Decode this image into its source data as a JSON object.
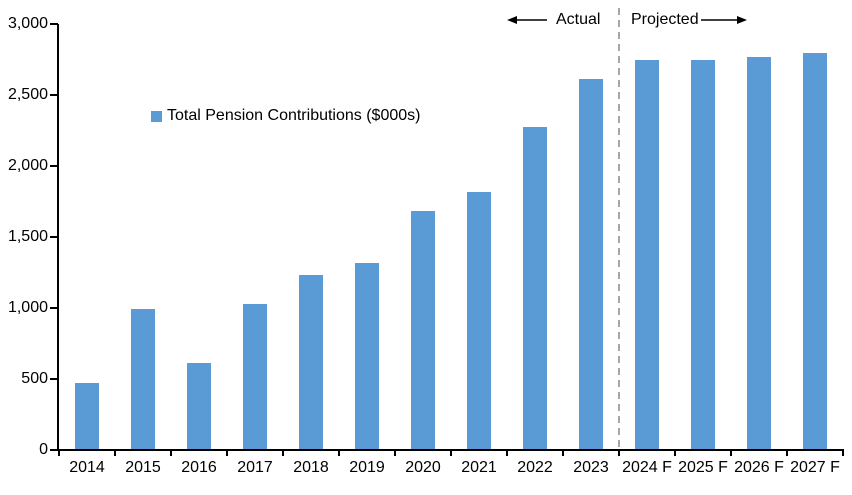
{
  "chart_data": {
    "type": "bar",
    "title": "",
    "legend_label": "Total Pension Contributions ($000s)",
    "categories": [
      "2014",
      "2015",
      "2016",
      "2017",
      "2018",
      "2019",
      "2020",
      "2021",
      "2022",
      "2023",
      "2024 F",
      "2025 F",
      "2026 F",
      "2027 F"
    ],
    "values": [
      470,
      990,
      610,
      1030,
      1230,
      1320,
      1685,
      1820,
      2275,
      2610,
      2750,
      2745,
      2770,
      2795
    ],
    "xlabel": "",
    "ylabel": "",
    "ylim": [
      0,
      3000
    ],
    "ytick_step": 500,
    "y_tick_labels": [
      "0",
      "500",
      "1,000",
      "1,500",
      "2,000",
      "2,500",
      "3,000"
    ],
    "bar_color": "#5B9BD5",
    "axis_color": "#000000",
    "separator_color": "#A6A6A6",
    "separator_after_index": 9,
    "annotations": {
      "actual": "Actual",
      "projected": "Projected"
    },
    "grid": false,
    "legend_position": "inside-upper-left"
  }
}
